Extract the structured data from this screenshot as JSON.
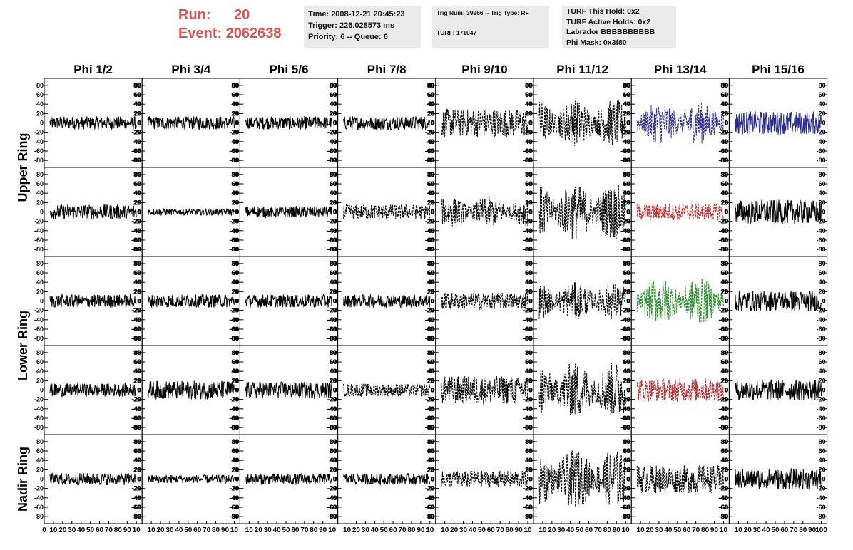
{
  "header": {
    "run_label": "Run:",
    "run_value": "20",
    "event_label": "Event:",
    "event_value": "2062638",
    "time_line": "Time: 2008-12-21 20:45:23",
    "trigger_line": "Trigger: 226.028573 ms",
    "priority_line": "Priority: 6 -- Queue: 6",
    "trig_line": "Trig Num: 39966 -- Trig Type: RF",
    "turf_line": "TURF: 171047",
    "turf_hold_line": "TURF This Hold: 0x2",
    "turf_active_line": "TURF Active Holds: 0x2",
    "labrador_line": "Labrador BBBBBBBBBB",
    "phi_mask_line": "Phi Mask: 0x3f80"
  },
  "colors": {
    "default_trace": "#000000",
    "blue_trace": "#2c2c8c",
    "red_trace": "#c0282c",
    "green_trace": "#2a8c2a",
    "run_text": "#d9534f",
    "info_bg": "#ebebeb"
  },
  "chart_data": {
    "type": "line",
    "columns": [
      "Phi 1/2",
      "Phi 3/4",
      "Phi 5/6",
      "Phi 7/8",
      "Phi 9/10",
      "Phi 11/12",
      "Phi 13/14",
      "Phi 15/16"
    ],
    "ring_labels": [
      {
        "label": "Upper Ring",
        "rows": [
          0,
          1
        ]
      },
      {
        "label": "Lower Ring",
        "rows": [
          2,
          3
        ]
      },
      {
        "label": "Nadir Ring",
        "rows": [
          4
        ]
      }
    ],
    "ylim": [
      -95,
      95
    ],
    "yticks": [
      -80,
      -60,
      -40,
      -20,
      0,
      20,
      40,
      60,
      80
    ],
    "xlim": [
      0,
      100
    ],
    "xticks_first": [
      "0",
      "10",
      "20",
      "30",
      "40",
      "50",
      "60",
      "70",
      "80",
      "90",
      "10"
    ],
    "xticks_rest": [
      "10",
      "20",
      "30",
      "40",
      "50",
      "60",
      "70",
      "80",
      "90",
      "10"
    ],
    "xticks_last": [
      "10",
      "20",
      "30",
      "40",
      "50",
      "60",
      "70",
      "80",
      "90",
      "100"
    ],
    "panels": [
      [
        {
          "amp": 14,
          "style": "solid",
          "color": "default_trace"
        },
        {
          "amp": 14,
          "style": "solid",
          "color": "default_trace"
        },
        {
          "amp": 14,
          "style": "solid",
          "color": "default_trace"
        },
        {
          "amp": 15,
          "style": "solid",
          "color": "default_trace"
        },
        {
          "amp": 30,
          "style": "dashed",
          "color": "default_trace"
        },
        {
          "amp": 50,
          "style": "dashed",
          "color": "default_trace"
        },
        {
          "amp": 45,
          "style": "dashed",
          "color": "blue_trace"
        },
        {
          "amp": 25,
          "style": "solid",
          "color": "blue_trace"
        }
      ],
      [
        {
          "amp": 16,
          "style": "solid",
          "color": "default_trace"
        },
        {
          "amp": 7,
          "style": "solid",
          "color": "default_trace"
        },
        {
          "amp": 12,
          "style": "solid",
          "color": "default_trace"
        },
        {
          "amp": 16,
          "style": "dashed",
          "color": "default_trace"
        },
        {
          "amp": 32,
          "style": "dashed",
          "color": "default_trace"
        },
        {
          "amp": 60,
          "style": "dashed",
          "color": "default_trace"
        },
        {
          "amp": 18,
          "style": "dashed",
          "color": "red_trace"
        },
        {
          "amp": 26,
          "style": "solid",
          "color": "default_trace"
        }
      ],
      [
        {
          "amp": 14,
          "style": "solid",
          "color": "default_trace"
        },
        {
          "amp": 14,
          "style": "solid",
          "color": "default_trace"
        },
        {
          "amp": 14,
          "style": "solid",
          "color": "default_trace"
        },
        {
          "amp": 14,
          "style": "solid",
          "color": "default_trace"
        },
        {
          "amp": 18,
          "style": "dashed",
          "color": "default_trace"
        },
        {
          "amp": 40,
          "style": "dashed",
          "color": "default_trace"
        },
        {
          "amp": 50,
          "style": "dashed",
          "color": "green_trace"
        },
        {
          "amp": 22,
          "style": "solid",
          "color": "default_trace"
        }
      ],
      [
        {
          "amp": 14,
          "style": "solid",
          "color": "default_trace"
        },
        {
          "amp": 20,
          "style": "solid",
          "color": "default_trace"
        },
        {
          "amp": 18,
          "style": "solid",
          "color": "default_trace"
        },
        {
          "amp": 14,
          "style": "dashed",
          "color": "default_trace"
        },
        {
          "amp": 30,
          "style": "dashed",
          "color": "default_trace"
        },
        {
          "amp": 60,
          "style": "dashed",
          "color": "default_trace"
        },
        {
          "amp": 25,
          "style": "dashed",
          "color": "red_trace"
        },
        {
          "amp": 22,
          "style": "solid",
          "color": "default_trace"
        }
      ],
      [
        {
          "amp": 13,
          "style": "solid",
          "color": "default_trace"
        },
        {
          "amp": 9,
          "style": "solid",
          "color": "default_trace"
        },
        {
          "amp": 12,
          "style": "solid",
          "color": "default_trace"
        },
        {
          "amp": 12,
          "style": "solid",
          "color": "default_trace"
        },
        {
          "amp": 18,
          "style": "dashed",
          "color": "default_trace"
        },
        {
          "amp": 62,
          "style": "dashed",
          "color": "default_trace"
        },
        {
          "amp": 30,
          "style": "dashed",
          "color": "default_trace"
        },
        {
          "amp": 22,
          "style": "solid",
          "color": "default_trace"
        }
      ]
    ]
  }
}
